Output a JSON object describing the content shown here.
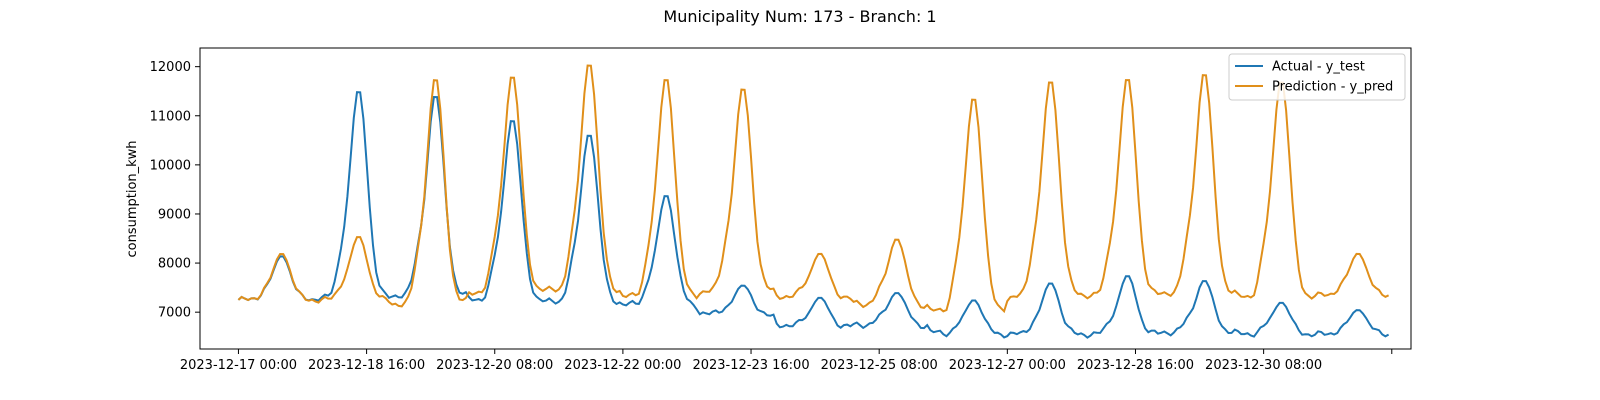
{
  "chart_data": {
    "type": "line",
    "title": "Municipality Num: 173 - Branch: 1",
    "xlabel": "",
    "ylabel": "consumption_kwh",
    "x_start": "2023-12-17 00:00",
    "x_end": "2023-12-31 23:00",
    "xlim": [
      "2023-12-16 12:00",
      "2024-01-01 06:00"
    ],
    "ylim": [
      6250,
      12380
    ],
    "grid": false,
    "legend_position": "top-right",
    "xticks": [
      "2023-12-17 00:00",
      "2023-12-18 16:00",
      "2023-12-20 08:00",
      "2023-12-22 00:00",
      "2023-12-23 16:00",
      "2023-12-25 08:00",
      "2023-12-27 00:00",
      "2023-12-28 16:00",
      "2023-12-30 08:00",
      ""
    ],
    "yticks": [
      7000,
      8000,
      9000,
      10000,
      11000,
      12000
    ],
    "series": [
      {
        "name": "Actual - y_test",
        "color": "#1f77b4",
        "daily_peaks": [
          {
            "date": "2023-12-17",
            "base": 7250,
            "peak": 8150
          },
          {
            "date": "2023-12-18",
            "base": 7300,
            "peak": 11550
          },
          {
            "date": "2023-12-19",
            "base": 7350,
            "peak": 11450
          },
          {
            "date": "2023-12-20",
            "base": 7250,
            "peak": 10950
          },
          {
            "date": "2023-12-21",
            "base": 7200,
            "peak": 10650
          },
          {
            "date": "2023-12-22",
            "base": 7150,
            "peak": 9400
          },
          {
            "date": "2023-12-23",
            "base": 6950,
            "peak": 7550
          },
          {
            "date": "2023-12-24",
            "base": 6700,
            "peak": 7300
          },
          {
            "date": "2023-12-25",
            "base": 6750,
            "peak": 7400
          },
          {
            "date": "2023-12-26",
            "base": 6550,
            "peak": 7250
          },
          {
            "date": "2023-12-27",
            "base": 6550,
            "peak": 7600
          },
          {
            "date": "2023-12-28",
            "base": 6550,
            "peak": 7750
          },
          {
            "date": "2023-12-29",
            "base": 6600,
            "peak": 7650
          },
          {
            "date": "2023-12-30",
            "base": 6550,
            "peak": 7200
          },
          {
            "date": "2023-12-31",
            "base": 6550,
            "peak": 7050
          }
        ]
      },
      {
        "name": "Prediction - y_pred",
        "color": "#e08f1a",
        "daily_peaks": [
          {
            "date": "2023-12-17",
            "base": 7250,
            "peak": 8200
          },
          {
            "date": "2023-12-18",
            "base": 7250,
            "peak": 8550
          },
          {
            "date": "2023-12-19",
            "base": 7150,
            "peak": 11800
          },
          {
            "date": "2023-12-20",
            "base": 7450,
            "peak": 11850
          },
          {
            "date": "2023-12-21",
            "base": 7450,
            "peak": 12100
          },
          {
            "date": "2023-12-22",
            "base": 7300,
            "peak": 11800
          },
          {
            "date": "2023-12-23",
            "base": 7450,
            "peak": 11600
          },
          {
            "date": "2023-12-24",
            "base": 7300,
            "peak": 8200
          },
          {
            "date": "2023-12-25",
            "base": 7150,
            "peak": 8500
          },
          {
            "date": "2023-12-26",
            "base": 7000,
            "peak": 11400
          },
          {
            "date": "2023-12-27",
            "base": 7350,
            "peak": 11750
          },
          {
            "date": "2023-12-28",
            "base": 7350,
            "peak": 11800
          },
          {
            "date": "2023-12-29",
            "base": 7400,
            "peak": 11900
          },
          {
            "date": "2023-12-30",
            "base": 7300,
            "peak": 11750
          },
          {
            "date": "2023-12-31",
            "base": 7350,
            "peak": 8200
          }
        ]
      }
    ]
  }
}
